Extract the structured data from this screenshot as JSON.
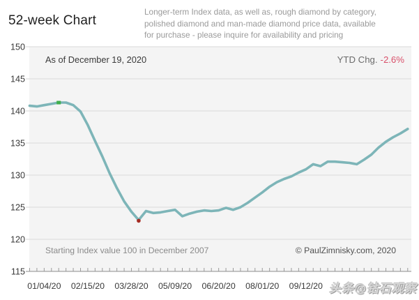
{
  "page": {
    "title": "52-week Chart",
    "description_lines": [
      "Longer-term Index data, as well as, rough diamond by category,",
      "polished diamond and man-made diamond price data, available",
      "for purchase - please inquire for availability and pricing"
    ],
    "as_of": "As of December 19, 2020",
    "ytd_label": "YTD Chg.",
    "ytd_value": "-2.6%",
    "footnote": "Starting Index value 100 in December 2007",
    "copyright": "© PaulZimnisky.com, 2020",
    "watermark": "头条@钻石观察"
  },
  "colors": {
    "line": "#7db5b8",
    "high_marker": "#3fae4c",
    "low_marker": "#a52b22",
    "ytd_value": "#d9506a",
    "plot_bg": "#f4f4f4",
    "grid": "#dadada",
    "axis": "#8c8c8c",
    "tick": "#9a9a9a",
    "axis_label": "#383838"
  },
  "chart_data": {
    "type": "line",
    "title": "52-week Chart",
    "x_unit": "week",
    "n_points": 53,
    "values": [
      140.8,
      140.7,
      140.9,
      141.1,
      141.3,
      141.3,
      140.9,
      139.9,
      137.8,
      135.3,
      132.9,
      130.3,
      128.0,
      125.9,
      124.3,
      123.0,
      124.4,
      124.1,
      124.2,
      124.4,
      124.6,
      123.6,
      124.0,
      124.3,
      124.5,
      124.4,
      124.5,
      124.9,
      124.6,
      125.0,
      125.7,
      126.5,
      127.3,
      128.2,
      128.9,
      129.4,
      129.8,
      130.4,
      130.9,
      131.7,
      131.4,
      132.1,
      132.1,
      132.0,
      131.9,
      131.7,
      132.4,
      133.2,
      134.3,
      135.2,
      135.9,
      136.5,
      137.2
    ],
    "ylim": [
      115,
      150
    ],
    "yticks": [
      150,
      145,
      140,
      135,
      130,
      125,
      120,
      115
    ],
    "x_tick_labels": [
      {
        "index": 2,
        "label": "01/04/20"
      },
      {
        "index": 8,
        "label": "02/15/20"
      },
      {
        "index": 14,
        "label": "03/28/20"
      },
      {
        "index": 20,
        "label": "05/09/20"
      },
      {
        "index": 26,
        "label": "06/20/20"
      },
      {
        "index": 32,
        "label": "08/01/20"
      },
      {
        "index": 38,
        "label": "09/12/20"
      }
    ],
    "markers": [
      {
        "index": 4,
        "type": "high",
        "value": 141.3
      },
      {
        "index": 15,
        "type": "low",
        "value": 123.0
      }
    ],
    "grid": "horizontal",
    "legend": "none"
  }
}
